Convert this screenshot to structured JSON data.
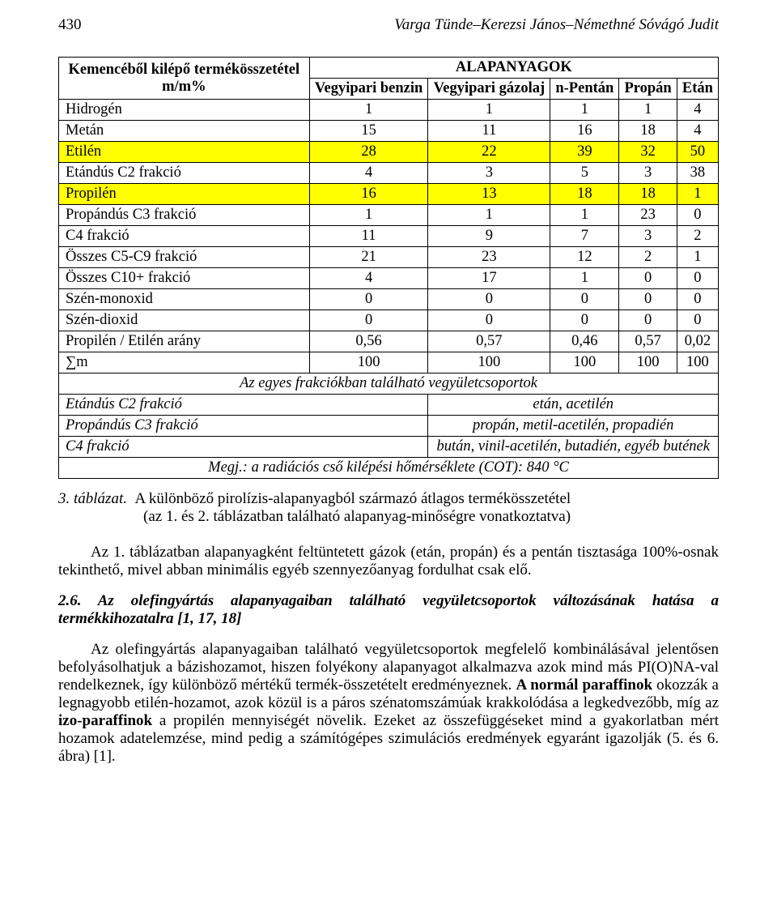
{
  "header": {
    "page_number": "430",
    "running_title": "Varga Tünde–Kerezsi János–Némethné Sóvágó Judit"
  },
  "table": {
    "row_header_label": "Kemencéből kilépő termékösszetétel m/m%",
    "group_header": "ALAPANYAGOK",
    "columns": [
      "Vegyipari benzin",
      "Vegyipari gázolaj",
      "n-Pentán",
      "Propán",
      "Etán"
    ],
    "rows": [
      {
        "label": "Hidrogén",
        "values": [
          "1",
          "1",
          "1",
          "1",
          "4"
        ],
        "highlight": false
      },
      {
        "label": "Metán",
        "values": [
          "15",
          "11",
          "16",
          "18",
          "4"
        ],
        "highlight": false
      },
      {
        "label": "Etilén",
        "values": [
          "28",
          "22",
          "39",
          "32",
          "50"
        ],
        "highlight": true
      },
      {
        "label": "Etándús C2 frakció",
        "values": [
          "4",
          "3",
          "5",
          "3",
          "38"
        ],
        "highlight": false
      },
      {
        "label": "Propilén",
        "values": [
          "16",
          "13",
          "18",
          "18",
          "1"
        ],
        "highlight": true
      },
      {
        "label": "Propándús C3 frakció",
        "values": [
          "1",
          "1",
          "1",
          "23",
          "0"
        ],
        "highlight": false
      },
      {
        "label": "C4 frakció",
        "values": [
          "11",
          "9",
          "7",
          "3",
          "2"
        ],
        "highlight": false
      },
      {
        "label": "Összes C5-C9 frakció",
        "values": [
          "21",
          "23",
          "12",
          "2",
          "1"
        ],
        "highlight": false
      },
      {
        "label": "Összes C10+ frakció",
        "values": [
          "4",
          "17",
          "1",
          "0",
          "0"
        ],
        "highlight": false
      },
      {
        "label": "Szén-monoxid",
        "values": [
          "0",
          "0",
          "0",
          "0",
          "0"
        ],
        "highlight": false
      },
      {
        "label": "Szén-dioxid",
        "values": [
          "0",
          "0",
          "0",
          "0",
          "0"
        ],
        "highlight": false
      },
      {
        "label": "Propilén / Etilén arány",
        "values": [
          "0,56",
          "0,57",
          "0,46",
          "0,57",
          "0,02"
        ],
        "highlight": false
      },
      {
        "label": "∑m",
        "values": [
          "100",
          "100",
          "100",
          "100",
          "100"
        ],
        "highlight": false
      }
    ],
    "groups_header": "Az egyes frakciókban található vegyületcsoportok",
    "groups": [
      {
        "label": "Etándús C2 frakció",
        "value": "etán, acetilén"
      },
      {
        "label": "Propándús C3 frakció",
        "value": "propán, metil-acetilén, propadién"
      },
      {
        "label": "C4 frakció",
        "value": "bután, vinil-acetilén, butadién, egyéb butének"
      }
    ],
    "note": "Megj.: a radiációs cső kilépési hőmérséklete (COT): 840 °C",
    "colors": {
      "highlight_bg": "#ffff00",
      "border": "#000000",
      "text": "#000000",
      "page_bg": "#ffffff"
    }
  },
  "caption": {
    "number": "3. táblázat.",
    "text_part1": "A különböző pirolízis-alapanyagból származó átlagos termékösszetétel",
    "text_part2": "(az 1. és 2. táblázatban található alapanyag-minőségre vonatkoztatva)"
  },
  "paragraphs": {
    "p1": "Az 1. táblázatban alapanyagként feltüntetett gázok (etán, propán) és a pentán tisztasága 100%-osnak tekinthető, mivel abban minimális egyéb szennyezőanyag fordulhat csak elő.",
    "subhead": "2.6. Az olefingyártás alapanyagaiban található vegyületcsoportok változásának hatása a termékkihozatalra [1, 17, 18]",
    "p2_a": "Az olefingyártás alapanyagaiban található vegyületcsoportok megfelelő kombinálásával jelentősen befolyásolhatjuk a bázishozamot, hiszen folyékony alapanyagot alkalmazva azok mind más PI(O)NA-val rendelkeznek, így különböző mértékű termék-összetételt eredményeznek. ",
    "p2_b_bold": "A normál paraffinok",
    "p2_c": " okozzák a legnagyobb etilén-hozamot, azok közül is a páros szénatomszámúak krakkolódása a legkedvezőbb, míg az ",
    "p2_d_bold": "izo-paraffinok",
    "p2_e": " a propilén mennyiségét növelik. Ezeket az összefüggéseket mind a gyakorlatban mért hozamok adatelemzése, mind pedig a számítógépes szimulációs eredmények egyaránt igazolják (5. és 6. ábra) [1]."
  }
}
